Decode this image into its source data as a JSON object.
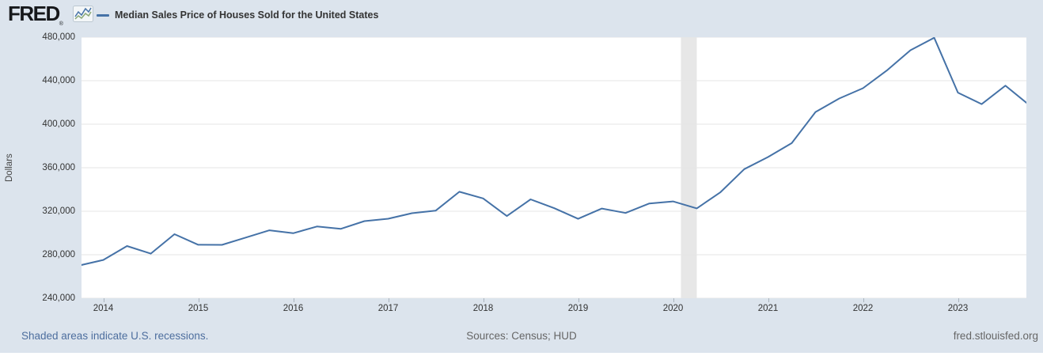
{
  "header": {
    "logo_text": "FRED",
    "registered_mark": "®",
    "legend": {
      "label": "Median Sales Price of Houses Sold for the United States",
      "swatch_color": "#4572a7"
    }
  },
  "chart_data": {
    "type": "line",
    "title": "Median Sales Price of Houses Sold for the United States",
    "xlabel": "",
    "ylabel": "Dollars",
    "ylim": [
      240000,
      480000
    ],
    "grid": true,
    "line_color": "#4572a7",
    "recession_band_color": "#e7e7e7",
    "gridline_color": "#e6e6e6",
    "yticks": [
      {
        "value": 240000,
        "label": "240,000"
      },
      {
        "value": 280000,
        "label": "280,000"
      },
      {
        "value": 320000,
        "label": "320,000"
      },
      {
        "value": 360000,
        "label": "360,000"
      },
      {
        "value": 400000,
        "label": "400,000"
      },
      {
        "value": 440000,
        "label": "440,000"
      },
      {
        "value": 480000,
        "label": "480,000"
      }
    ],
    "xticks": [
      {
        "value": 2014,
        "label": "2014"
      },
      {
        "value": 2015,
        "label": "2015"
      },
      {
        "value": 2016,
        "label": "2016"
      },
      {
        "value": 2017,
        "label": "2017"
      },
      {
        "value": 2018,
        "label": "2018"
      },
      {
        "value": 2019,
        "label": "2019"
      },
      {
        "value": 2020,
        "label": "2020"
      },
      {
        "value": 2021,
        "label": "2021"
      },
      {
        "value": 2022,
        "label": "2022"
      },
      {
        "value": 2023,
        "label": "2023"
      }
    ],
    "x": [
      "2013-10-01",
      "2014-01-01",
      "2014-04-01",
      "2014-07-01",
      "2014-10-01",
      "2015-01-01",
      "2015-04-01",
      "2015-07-01",
      "2015-10-01",
      "2016-01-01",
      "2016-04-01",
      "2016-07-01",
      "2016-10-01",
      "2017-01-01",
      "2017-04-01",
      "2017-07-01",
      "2017-10-01",
      "2018-01-01",
      "2018-04-01",
      "2018-07-01",
      "2018-10-01",
      "2019-01-01",
      "2019-04-01",
      "2019-07-01",
      "2019-10-01",
      "2020-01-01",
      "2020-04-01",
      "2020-07-01",
      "2020-10-01",
      "2021-01-01",
      "2021-04-01",
      "2021-07-01",
      "2021-10-01",
      "2022-01-01",
      "2022-04-01",
      "2022-07-01",
      "2022-10-01",
      "2023-01-01",
      "2023-04-01",
      "2023-07-01",
      "2023-10-01"
    ],
    "values": [
      270200,
      275200,
      288000,
      281000,
      298900,
      289200,
      289100,
      295800,
      302500,
      299800,
      306000,
      303800,
      310900,
      313100,
      318200,
      320500,
      337900,
      331800,
      315600,
      330900,
      322800,
      313000,
      322500,
      318400,
      327100,
      329000,
      322600,
      337500,
      358700,
      369800,
      382600,
      411200,
      423600,
      433100,
      449300,
      468000,
      479500,
      429000,
      418500,
      435400,
      417700
    ],
    "recession_bands": [
      {
        "start": "2020-02-01",
        "end": "2020-04-01"
      }
    ]
  },
  "footer": {
    "recessions_note": "Shaded areas indicate U.S. recessions.",
    "sources": "Sources: Census; HUD",
    "site": "fred.stlouisfed.org"
  },
  "colors": {
    "background": "#dce4ed",
    "plot_background": "#ffffff",
    "accent_line": "#4572a7",
    "footer_link": "#4d6e9e",
    "footer_text": "#666666"
  }
}
